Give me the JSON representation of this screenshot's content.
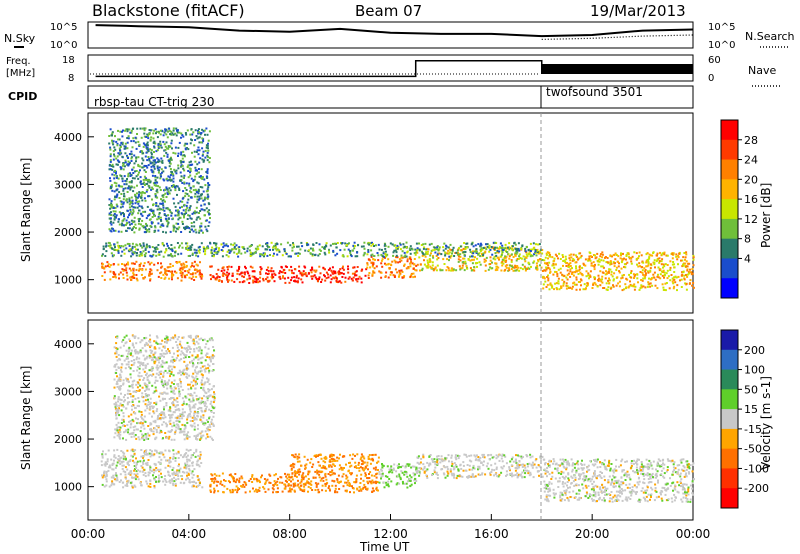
{
  "header": {
    "station": "Blackstone (fitACF)",
    "beam": "Beam 07",
    "date": "19/Mar/2013"
  },
  "noise_panel": {
    "left_label": "N.Sky",
    "right_label": "N.Search",
    "left_ticks": [
      "10^5",
      "10^0"
    ],
    "right_ticks": [
      "10^5",
      "10^0"
    ]
  },
  "freq_panel": {
    "left_label_1": "Freq.",
    "left_label_2": "[MHz]",
    "right_label": "Nave",
    "left_ticks": [
      "18",
      "8"
    ],
    "right_ticks": [
      "60",
      "0"
    ]
  },
  "cpid": {
    "label": "CPID",
    "segments": [
      {
        "name": "rbsp-tau CT-trig 230",
        "start": "00:00",
        "end": "18:00"
      },
      {
        "name": "twofsound 3501",
        "start": "18:00",
        "end": "24:00"
      }
    ]
  },
  "power_colorbar": {
    "title": "Power [dB]",
    "ticks": [
      "28",
      "24",
      "20",
      "16",
      "12",
      "8",
      "4"
    ],
    "colors": [
      "#ff0000",
      "#ff3a00",
      "#ff8000",
      "#ffb300",
      "#c8e600",
      "#6fbf3a",
      "#2a7a6a",
      "#1a4dcc",
      "#0000ff"
    ]
  },
  "velocity_colorbar": {
    "title": "Velocity [m s-1]",
    "ticks": [
      "200",
      "100",
      "50",
      "15",
      "-15",
      "-50",
      "-100",
      "-200"
    ],
    "colors": [
      "#1a1aa8",
      "#2e6ec4",
      "#2a8a5a",
      "#5fcf2a",
      "#c8c8c8",
      "#ffa500",
      "#ff7000",
      "#ff3000",
      "#ff0000"
    ]
  },
  "chart_data": {
    "type": "heatmap",
    "title": "Blackstone (fitACF) Beam 07 19/Mar/2013",
    "xlabel": "Time UT",
    "ylabel": "Slant Range [km]",
    "x_ticks": [
      "00:00",
      "04:00",
      "08:00",
      "12:00",
      "16:00",
      "20:00",
      "00:00"
    ],
    "x_range_hours": [
      0,
      24
    ],
    "y_ticks": [
      "1000",
      "2000",
      "3000",
      "4000"
    ],
    "y_range_km": [
      300,
      4500
    ],
    "mode_change_hour": 18,
    "nsky_series": {
      "hours": [
        0.3,
        2,
        4,
        6,
        8,
        10,
        12,
        14,
        16,
        18,
        20,
        22,
        24
      ],
      "level": [
        0.95,
        0.9,
        0.85,
        0.7,
        0.65,
        0.78,
        0.6,
        0.55,
        0.55,
        0.45,
        0.5,
        0.7,
        0.75
      ]
    },
    "nsearch_series": {
      "hours": [
        18,
        20,
        22,
        24
      ],
      "level": [
        0.3,
        0.35,
        0.45,
        0.5
      ]
    },
    "freq_series": {
      "hours": [
        0.3,
        13,
        13,
        18,
        18,
        24
      ],
      "mhz": [
        9.5,
        9.5,
        16,
        16,
        11,
        11
      ]
    },
    "power_regions": [
      {
        "t0": 0.5,
        "t1": 4.5,
        "r0": 1000,
        "r1": 1400,
        "level": 22
      },
      {
        "t0": 4.8,
        "t1": 11.0,
        "r0": 950,
        "r1": 1300,
        "level": 28
      },
      {
        "t0": 11.0,
        "t1": 13.0,
        "r0": 1050,
        "r1": 1500,
        "level": 22
      },
      {
        "t0": 13.0,
        "t1": 18.0,
        "r0": 1200,
        "r1": 1700,
        "level": 16
      },
      {
        "t0": 18.0,
        "t1": 24.0,
        "r0": 800,
        "r1": 1600,
        "level": 18
      },
      {
        "t0": 0.5,
        "t1": 18.0,
        "r0": 1500,
        "r1": 1800,
        "level": 8
      },
      {
        "t0": 0.8,
        "t1": 4.8,
        "r0": 2000,
        "r1": 4200,
        "level": 6
      }
    ],
    "velocity_regions": [
      {
        "t0": 0.5,
        "t1": 4.5,
        "r0": 1000,
        "r1": 1800,
        "velocity": 0
      },
      {
        "t0": 4.8,
        "t1": 11.5,
        "r0": 900,
        "r1": 1300,
        "velocity": -50
      },
      {
        "t0": 8.0,
        "t1": 11.5,
        "r0": 1300,
        "r1": 1700,
        "velocity": -50
      },
      {
        "t0": 11.5,
        "t1": 13.0,
        "r0": 1000,
        "r1": 1500,
        "velocity": 20
      },
      {
        "t0": 13.0,
        "t1": 18.0,
        "r0": 1200,
        "r1": 1700,
        "velocity": 0
      },
      {
        "t0": 18.0,
        "t1": 24.0,
        "r0": 700,
        "r1": 1600,
        "velocity": 0
      },
      {
        "t0": 1.0,
        "t1": 5.0,
        "r0": 2000,
        "r1": 4200,
        "velocity": 0
      }
    ]
  }
}
